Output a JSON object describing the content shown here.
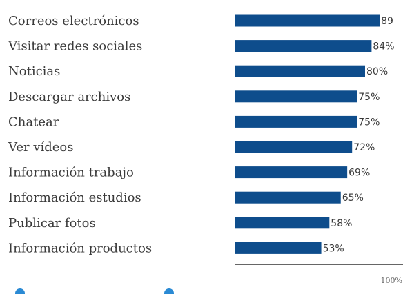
{
  "chart_data": {
    "type": "bar",
    "orientation": "horizontal",
    "categories": [
      "Correos electrónicos",
      "Visitar redes sociales",
      "Noticias",
      "Descargar archivos",
      "Chatear",
      "Ver vídeos",
      "Información trabajo",
      "Información estudios",
      "Publicar fotos",
      "Información productos"
    ],
    "values": [
      89,
      84,
      80,
      75,
      75,
      72,
      69,
      65,
      58,
      53
    ],
    "value_labels": [
      "89",
      "84%",
      "80%",
      "75%",
      "75%",
      "72%",
      "69%",
      "65%",
      "58%",
      "53%"
    ],
    "xlim": [
      0,
      100
    ],
    "xticks": [
      "100%"
    ],
    "bar_color": "#0e4d8c",
    "grid": false,
    "title": "",
    "xlabel": "",
    "ylabel": ""
  },
  "legend": {
    "dot_colors": [
      "#2a8ad4",
      "#2a8ad4"
    ]
  }
}
